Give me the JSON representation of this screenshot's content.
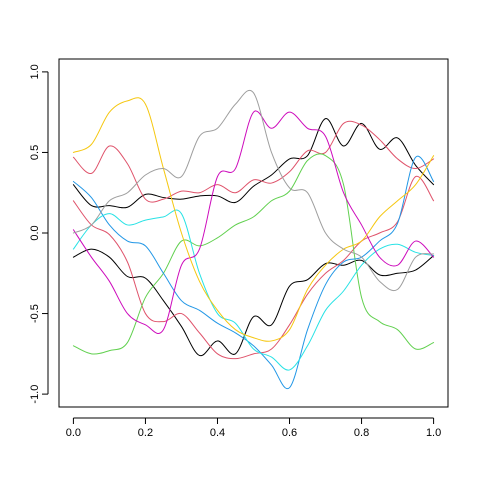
{
  "chart_data": {
    "type": "line",
    "title": "",
    "xlabel": "",
    "ylabel": "",
    "xlim": [
      -0.04,
      1.04
    ],
    "ylim": [
      -1.08,
      1.08
    ],
    "grid": false,
    "legend": "none",
    "x_ticks": [
      0.0,
      0.2,
      0.4,
      0.6,
      0.8,
      1.0
    ],
    "x_tick_labels": [
      "0.0",
      "0.2",
      "0.4",
      "0.6",
      "0.8",
      "1.0"
    ],
    "y_ticks": [
      -1.0,
      -0.5,
      0.0,
      0.5,
      1.0
    ],
    "y_tick_labels": [
      "-1.0",
      "-0.5",
      "0.0",
      "0.5",
      "1.0"
    ],
    "series": [
      {
        "color": "#000000",
        "points": [
          [
            0.0,
            0.3
          ],
          [
            0.05,
            0.17
          ],
          [
            0.1,
            0.17
          ],
          [
            0.15,
            0.16
          ],
          [
            0.2,
            0.24
          ],
          [
            0.25,
            0.22
          ],
          [
            0.3,
            0.21
          ],
          [
            0.35,
            0.23
          ],
          [
            0.4,
            0.23
          ],
          [
            0.45,
            0.19
          ],
          [
            0.5,
            0.29
          ],
          [
            0.55,
            0.36
          ],
          [
            0.6,
            0.46
          ],
          [
            0.65,
            0.48
          ],
          [
            0.7,
            0.71
          ],
          [
            0.75,
            0.54
          ],
          [
            0.8,
            0.68
          ],
          [
            0.85,
            0.52
          ],
          [
            0.9,
            0.59
          ],
          [
            0.95,
            0.42
          ],
          [
            1.0,
            0.3
          ]
        ]
      },
      {
        "color": "#000000",
        "points": [
          [
            0.0,
            -0.15
          ],
          [
            0.05,
            -0.1
          ],
          [
            0.1,
            -0.15
          ],
          [
            0.15,
            -0.27
          ],
          [
            0.2,
            -0.28
          ],
          [
            0.25,
            -0.42
          ],
          [
            0.3,
            -0.58
          ],
          [
            0.35,
            -0.76
          ],
          [
            0.4,
            -0.67
          ],
          [
            0.45,
            -0.75
          ],
          [
            0.5,
            -0.52
          ],
          [
            0.55,
            -0.57
          ],
          [
            0.6,
            -0.33
          ],
          [
            0.65,
            -0.29
          ],
          [
            0.7,
            -0.19
          ],
          [
            0.75,
            -0.2
          ],
          [
            0.8,
            -0.17
          ],
          [
            0.85,
            -0.26
          ],
          [
            0.9,
            -0.25
          ],
          [
            0.95,
            -0.23
          ],
          [
            1.0,
            -0.14
          ]
        ]
      },
      {
        "color": "#DF536B",
        "points": [
          [
            0.0,
            0.47
          ],
          [
            0.05,
            0.37
          ],
          [
            0.1,
            0.54
          ],
          [
            0.15,
            0.43
          ],
          [
            0.2,
            0.21
          ],
          [
            0.25,
            0.21
          ],
          [
            0.3,
            0.26
          ],
          [
            0.35,
            0.25
          ],
          [
            0.4,
            0.3
          ],
          [
            0.45,
            0.25
          ],
          [
            0.5,
            0.33
          ],
          [
            0.55,
            0.31
          ],
          [
            0.6,
            0.38
          ],
          [
            0.65,
            0.51
          ],
          [
            0.7,
            0.5
          ],
          [
            0.75,
            0.68
          ],
          [
            0.8,
            0.67
          ],
          [
            0.85,
            0.58
          ],
          [
            0.9,
            0.46
          ],
          [
            0.95,
            0.4
          ],
          [
            1.0,
            0.46
          ]
        ]
      },
      {
        "color": "#DF536B",
        "points": [
          [
            0.0,
            0.2
          ],
          [
            0.05,
            0.05
          ],
          [
            0.1,
            -0.01
          ],
          [
            0.15,
            -0.18
          ],
          [
            0.2,
            -0.5
          ],
          [
            0.25,
            -0.55
          ],
          [
            0.3,
            -0.5
          ],
          [
            0.35,
            -0.62
          ],
          [
            0.4,
            -0.75
          ],
          [
            0.45,
            -0.78
          ],
          [
            0.5,
            -0.75
          ],
          [
            0.55,
            -0.72
          ],
          [
            0.6,
            -0.57
          ],
          [
            0.65,
            -0.38
          ],
          [
            0.7,
            -0.25
          ],
          [
            0.75,
            -0.17
          ],
          [
            0.8,
            -0.05
          ],
          [
            0.85,
            0.0
          ],
          [
            0.9,
            0.07
          ],
          [
            0.95,
            0.35
          ],
          [
            1.0,
            0.2
          ]
        ]
      },
      {
        "color": "#61D04F",
        "points": [
          [
            0.0,
            -0.7
          ],
          [
            0.05,
            -0.75
          ],
          [
            0.1,
            -0.73
          ],
          [
            0.15,
            -0.68
          ],
          [
            0.2,
            -0.4
          ],
          [
            0.25,
            -0.25
          ],
          [
            0.3,
            -0.05
          ],
          [
            0.35,
            -0.08
          ],
          [
            0.4,
            -0.03
          ],
          [
            0.45,
            0.05
          ],
          [
            0.5,
            0.1
          ],
          [
            0.55,
            0.2
          ],
          [
            0.6,
            0.26
          ],
          [
            0.65,
            0.45
          ],
          [
            0.7,
            0.48
          ],
          [
            0.75,
            0.3
          ],
          [
            0.8,
            -0.4
          ],
          [
            0.85,
            -0.55
          ],
          [
            0.9,
            -0.6
          ],
          [
            0.95,
            -0.72
          ],
          [
            1.0,
            -0.68
          ]
        ]
      },
      {
        "color": "#2297E6",
        "points": [
          [
            0.0,
            0.32
          ],
          [
            0.05,
            0.22
          ],
          [
            0.1,
            0.05
          ],
          [
            0.15,
            -0.05
          ],
          [
            0.2,
            -0.08
          ],
          [
            0.25,
            -0.25
          ],
          [
            0.3,
            -0.42
          ],
          [
            0.35,
            -0.48
          ],
          [
            0.4,
            -0.56
          ],
          [
            0.45,
            -0.62
          ],
          [
            0.5,
            -0.7
          ],
          [
            0.55,
            -0.82
          ],
          [
            0.6,
            -0.96
          ],
          [
            0.65,
            -0.6
          ],
          [
            0.7,
            -0.32
          ],
          [
            0.75,
            -0.18
          ],
          [
            0.8,
            -0.15
          ],
          [
            0.85,
            -0.05
          ],
          [
            0.9,
            0.06
          ],
          [
            0.95,
            0.47
          ],
          [
            1.0,
            0.32
          ]
        ]
      },
      {
        "color": "#28E2E5",
        "points": [
          [
            0.0,
            -0.1
          ],
          [
            0.05,
            0.05
          ],
          [
            0.1,
            0.12
          ],
          [
            0.15,
            0.05
          ],
          [
            0.2,
            0.08
          ],
          [
            0.25,
            0.1
          ],
          [
            0.3,
            0.12
          ],
          [
            0.35,
            -0.25
          ],
          [
            0.4,
            -0.5
          ],
          [
            0.45,
            -0.56
          ],
          [
            0.5,
            -0.72
          ],
          [
            0.55,
            -0.77
          ],
          [
            0.6,
            -0.85
          ],
          [
            0.65,
            -0.7
          ],
          [
            0.7,
            -0.48
          ],
          [
            0.75,
            -0.36
          ],
          [
            0.8,
            -0.2
          ],
          [
            0.85,
            -0.1
          ],
          [
            0.9,
            -0.07
          ],
          [
            0.95,
            -0.12
          ],
          [
            1.0,
            -0.14
          ]
        ]
      },
      {
        "color": "#CD0BBC",
        "points": [
          [
            0.0,
            0.02
          ],
          [
            0.05,
            -0.15
          ],
          [
            0.1,
            -0.3
          ],
          [
            0.15,
            -0.5
          ],
          [
            0.2,
            -0.57
          ],
          [
            0.25,
            -0.6
          ],
          [
            0.3,
            -0.2
          ],
          [
            0.35,
            -0.1
          ],
          [
            0.4,
            0.35
          ],
          [
            0.45,
            0.4
          ],
          [
            0.5,
            0.75
          ],
          [
            0.55,
            0.65
          ],
          [
            0.6,
            0.75
          ],
          [
            0.65,
            0.65
          ],
          [
            0.7,
            0.6
          ],
          [
            0.75,
            0.25
          ],
          [
            0.8,
            0.05
          ],
          [
            0.85,
            -0.15
          ],
          [
            0.9,
            -0.2
          ],
          [
            0.95,
            -0.05
          ],
          [
            1.0,
            -0.15
          ]
        ]
      },
      {
        "color": "#F5C710",
        "points": [
          [
            0.0,
            0.5
          ],
          [
            0.05,
            0.55
          ],
          [
            0.1,
            0.75
          ],
          [
            0.15,
            0.82
          ],
          [
            0.2,
            0.8
          ],
          [
            0.25,
            0.4
          ],
          [
            0.3,
            0.0
          ],
          [
            0.35,
            -0.3
          ],
          [
            0.4,
            -0.48
          ],
          [
            0.45,
            -0.6
          ],
          [
            0.5,
            -0.65
          ],
          [
            0.55,
            -0.67
          ],
          [
            0.6,
            -0.6
          ],
          [
            0.65,
            -0.35
          ],
          [
            0.7,
            -0.2
          ],
          [
            0.75,
            -0.1
          ],
          [
            0.8,
            -0.05
          ],
          [
            0.85,
            0.1
          ],
          [
            0.9,
            0.2
          ],
          [
            0.95,
            0.3
          ],
          [
            1.0,
            0.48
          ]
        ]
      },
      {
        "color": "#9E9E9E",
        "points": [
          [
            0.0,
            0.0
          ],
          [
            0.05,
            0.05
          ],
          [
            0.1,
            0.2
          ],
          [
            0.15,
            0.25
          ],
          [
            0.2,
            0.36
          ],
          [
            0.25,
            0.4
          ],
          [
            0.3,
            0.35
          ],
          [
            0.35,
            0.6
          ],
          [
            0.4,
            0.65
          ],
          [
            0.45,
            0.8
          ],
          [
            0.5,
            0.87
          ],
          [
            0.55,
            0.5
          ],
          [
            0.6,
            0.28
          ],
          [
            0.65,
            0.25
          ],
          [
            0.7,
            0.0
          ],
          [
            0.75,
            -0.1
          ],
          [
            0.8,
            -0.15
          ],
          [
            0.85,
            -0.3
          ],
          [
            0.9,
            -0.35
          ],
          [
            0.95,
            -0.15
          ],
          [
            1.0,
            -0.13
          ]
        ]
      }
    ]
  }
}
